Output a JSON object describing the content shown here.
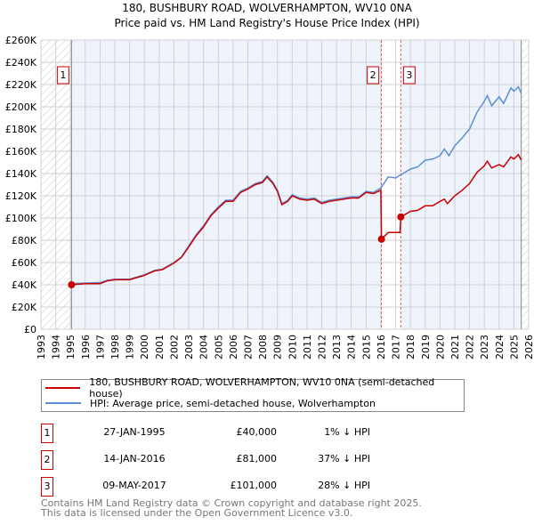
{
  "chart_data": {
    "type": "line",
    "title": "180, BUSHBURY ROAD, WOLVERHAMPTON, WV10 0NA",
    "subtitle": "Price paid vs. HM Land Registry's House Price Index (HPI)",
    "xlim": [
      1993,
      2026
    ],
    "ylim": [
      0,
      260000
    ],
    "y_ticks": [
      0,
      20000,
      40000,
      60000,
      80000,
      100000,
      120000,
      140000,
      160000,
      180000,
      200000,
      220000,
      240000,
      260000
    ],
    "y_tick_labels": [
      "£0",
      "£20K",
      "£40K",
      "£60K",
      "£80K",
      "£100K",
      "£120K",
      "£140K",
      "£160K",
      "£180K",
      "£200K",
      "£220K",
      "£240K",
      "£260K"
    ],
    "x_ticks": [
      1993,
      1994,
      1995,
      1996,
      1997,
      1998,
      1999,
      2000,
      2001,
      2002,
      2003,
      2004,
      2005,
      2006,
      2007,
      2008,
      2009,
      2010,
      2011,
      2012,
      2013,
      2014,
      2015,
      2016,
      2017,
      2018,
      2019,
      2020,
      2021,
      2022,
      2023,
      2024,
      2025,
      2026
    ],
    "grid": true,
    "hatched_ranges": [
      [
        1993,
        1995.07
      ],
      [
        2025.5,
        2026
      ]
    ],
    "series": [
      {
        "name": "180, BUSHBURY ROAD, WOLVERHAMPTON, WV10 0NA (semi-detached house)",
        "color": "#cc0000",
        "x": [
          1995.07,
          1996,
          1997,
          1997.5,
          1998,
          1999,
          2000,
          2000.7,
          2001.2,
          2002,
          2002.5,
          2003,
          2003.5,
          2004,
          2004.5,
          2005,
          2005.5,
          2006,
          2006.5,
          2007,
          2007.5,
          2008,
          2008.3,
          2008.7,
          2009,
          2009.3,
          2009.7,
          2010,
          2010.5,
          2011,
          2011.5,
          2012,
          2012.5,
          2013,
          2013.5,
          2014,
          2014.5,
          2015,
          2015.5,
          2016.0,
          2016.04,
          2016.5,
          2017,
          2017.3,
          2017.35,
          2018,
          2018.5,
          2019,
          2019.5,
          2020,
          2020.3,
          2020.5,
          2021,
          2021.5,
          2022,
          2022.5,
          2023,
          2023.2,
          2023.5,
          2024,
          2024.3,
          2024.8,
          2025,
          2025.3,
          2025.5
        ],
        "y": [
          40000,
          41000,
          41000,
          43500,
          44500,
          44500,
          48500,
          52500,
          53500,
          59500,
          64500,
          74000,
          84000,
          92000,
          102000,
          109000,
          115000,
          115000,
          123000,
          126000,
          130000,
          132000,
          137000,
          131000,
          124000,
          112000,
          115000,
          120000,
          117000,
          116000,
          117000,
          113000,
          115000,
          116000,
          117000,
          118000,
          118000,
          123000,
          122000,
          125000,
          81000,
          87000,
          87000,
          87000,
          101000,
          106000,
          107000,
          111000,
          111000,
          115000,
          117000,
          113000,
          120000,
          125000,
          131000,
          141000,
          147000,
          151000,
          145000,
          148000,
          146000,
          155000,
          153000,
          157000,
          152000
        ]
      },
      {
        "name": "HPI: Average price, semi-detached house, Wolverhampton",
        "color": "#5b8fd6",
        "x": [
          1995.07,
          1996,
          1997,
          1997.5,
          1998,
          1999,
          2000,
          2000.7,
          2001.2,
          2002,
          2002.5,
          2003,
          2003.5,
          2004,
          2004.5,
          2005,
          2005.5,
          2006,
          2006.5,
          2007,
          2007.5,
          2008,
          2008.3,
          2008.7,
          2009,
          2009.3,
          2009.7,
          2010,
          2010.5,
          2011,
          2011.5,
          2012,
          2012.5,
          2013,
          2013.5,
          2014,
          2014.5,
          2015,
          2015.5,
          2016,
          2016.5,
          2017,
          2017.5,
          2018,
          2018.5,
          2019,
          2019.5,
          2020,
          2020.3,
          2020.6,
          2021,
          2021.5,
          2022,
          2022.5,
          2023,
          2023.2,
          2023.5,
          2024,
          2024.3,
          2024.8,
          2025,
          2025.3,
          2025.5
        ],
        "y": [
          41000,
          41500,
          42000,
          44000,
          45000,
          45000,
          49000,
          53000,
          54000,
          60000,
          65000,
          75000,
          85000,
          93000,
          103000,
          110000,
          116000,
          116000,
          124000,
          127000,
          131000,
          133000,
          138000,
          132000,
          125000,
          113000,
          116000,
          121000,
          118000,
          117000,
          118000,
          114000,
          116000,
          117000,
          118000,
          119000,
          119000,
          124000,
          123000,
          127000,
          137000,
          136000,
          140000,
          144000,
          146000,
          152000,
          153000,
          156000,
          162000,
          156000,
          165000,
          172000,
          180000,
          195000,
          205000,
          210000,
          201000,
          209000,
          203000,
          217000,
          214000,
          218000,
          212000
        ]
      }
    ],
    "sales": [
      {
        "label": "1",
        "x": 1995.07,
        "y": 40000
      },
      {
        "label": "2",
        "x": 2016.04,
        "y": 81000
      },
      {
        "label": "3",
        "x": 2017.35,
        "y": 101000
      }
    ],
    "legend_placement": "below"
  },
  "transactions": [
    {
      "num": "1",
      "date": "27-JAN-1995",
      "price": "£40,000",
      "hpi": "1% ↓ HPI"
    },
    {
      "num": "2",
      "date": "14-JAN-2016",
      "price": "£81,000",
      "hpi": "37% ↓ HPI"
    },
    {
      "num": "3",
      "date": "09-MAY-2017",
      "price": "£101,000",
      "hpi": "28% ↓ HPI"
    }
  ],
  "footer": {
    "line1": "Contains HM Land Registry data © Crown copyright and database right 2025.",
    "line2": "This data is licensed under the Open Government Licence v3.0."
  }
}
